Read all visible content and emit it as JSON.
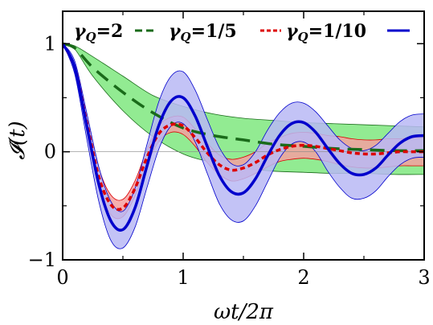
{
  "chart_data": {
    "type": "line",
    "xlabel": "ωt/2π",
    "ylabel": "𝓘(t)",
    "xlim": [
      0,
      3
    ],
    "ylim": [
      -1,
      1.3
    ],
    "x_ticks": [
      0,
      1,
      2,
      3
    ],
    "x_tick_labels": [
      "0",
      "1",
      "2",
      "3"
    ],
    "y_ticks": [
      -1,
      0,
      1
    ],
    "y_tick_labels": [
      "−1",
      "0",
      "1"
    ],
    "legend_placement": "top",
    "grid": false,
    "series": [
      {
        "name": "γQ=2",
        "legend_label": "γ_Q=2",
        "color": "#1a6b1a",
        "band_color": "#7fe87f",
        "dash": "18,10",
        "x": [
          0,
          0.1,
          0.25,
          0.5,
          0.75,
          1.0,
          1.25,
          1.5,
          1.75,
          2.0,
          2.25,
          2.5,
          2.75,
          3.0
        ],
        "y": [
          1.0,
          0.96,
          0.78,
          0.55,
          0.36,
          0.22,
          0.15,
          0.11,
          0.07,
          0.05,
          0.03,
          0.02,
          0.01,
          0.01
        ],
        "band_upper": [
          1.0,
          0.98,
          0.88,
          0.7,
          0.52,
          0.42,
          0.35,
          0.31,
          0.29,
          0.27,
          0.26,
          0.25,
          0.24,
          0.23
        ],
        "band_lower": [
          1.0,
          0.95,
          0.7,
          0.38,
          0.14,
          -0.02,
          -0.1,
          -0.15,
          -0.18,
          -0.19,
          -0.2,
          -0.2,
          -0.21,
          -0.21
        ]
      },
      {
        "name": "γQ=1/5",
        "legend_label": "γ_Q=1/5",
        "color": "#dd0000",
        "band_color": "#f4a0a0",
        "dash": "6,4",
        "x": [
          0,
          0.1,
          0.2,
          0.3,
          0.4,
          0.5,
          0.6,
          0.7,
          0.8,
          0.9,
          1.0,
          1.1,
          1.2,
          1.3,
          1.4,
          1.5,
          1.6,
          1.7,
          1.8,
          1.9,
          2.0,
          2.1,
          2.2,
          2.3,
          2.4,
          2.5,
          2.6,
          2.7,
          2.8,
          2.9,
          3.0
        ],
        "y": [
          1.0,
          0.78,
          0.27,
          -0.23,
          -0.49,
          -0.52,
          -0.34,
          -0.05,
          0.17,
          0.25,
          0.24,
          0.13,
          -0.01,
          -0.12,
          -0.17,
          -0.15,
          -0.1,
          -0.03,
          0.02,
          0.05,
          0.06,
          0.05,
          0.03,
          0.01,
          -0.01,
          -0.02,
          -0.02,
          -0.01,
          0.0,
          0.0,
          0.0
        ],
        "band_upper": [
          1.0,
          0.8,
          0.32,
          -0.15,
          -0.4,
          -0.44,
          -0.27,
          0.02,
          0.24,
          0.32,
          0.32,
          0.21,
          0.08,
          -0.03,
          -0.07,
          -0.05,
          0.0,
          0.08,
          0.13,
          0.17,
          0.18,
          0.17,
          0.15,
          0.14,
          0.12,
          0.11,
          0.11,
          0.12,
          0.12,
          0.13,
          0.13
        ],
        "band_lower": [
          1.0,
          0.76,
          0.22,
          -0.31,
          -0.58,
          -0.6,
          -0.41,
          -0.12,
          0.1,
          0.18,
          0.16,
          0.05,
          -0.1,
          -0.21,
          -0.27,
          -0.25,
          -0.2,
          -0.14,
          -0.09,
          -0.07,
          -0.06,
          -0.07,
          -0.09,
          -0.12,
          -0.14,
          -0.15,
          -0.15,
          -0.14,
          -0.13,
          -0.13,
          -0.13
        ]
      },
      {
        "name": "γQ=1/10",
        "legend_label": "γ_Q=1/10",
        "color": "#0000cc",
        "band_color": "#b8b8f4",
        "dash": "",
        "x": [
          0,
          0.1,
          0.2,
          0.3,
          0.4,
          0.5,
          0.6,
          0.7,
          0.8,
          0.9,
          1.0,
          1.1,
          1.2,
          1.3,
          1.4,
          1.5,
          1.6,
          1.7,
          1.8,
          1.9,
          2.0,
          2.1,
          2.2,
          2.3,
          2.4,
          2.5,
          2.6,
          2.7,
          2.8,
          2.9,
          3.0
        ],
        "y": [
          1.0,
          0.78,
          0.24,
          -0.3,
          -0.64,
          -0.72,
          -0.52,
          -0.13,
          0.25,
          0.47,
          0.5,
          0.33,
          0.05,
          -0.22,
          -0.37,
          -0.38,
          -0.25,
          -0.04,
          0.15,
          0.26,
          0.27,
          0.18,
          0.03,
          -0.11,
          -0.2,
          -0.21,
          -0.15,
          -0.03,
          0.08,
          0.14,
          0.15
        ],
        "band_upper": [
          1.0,
          0.84,
          0.36,
          -0.14,
          -0.46,
          -0.55,
          -0.34,
          0.07,
          0.47,
          0.7,
          0.74,
          0.57,
          0.3,
          0.04,
          -0.11,
          -0.12,
          0.0,
          0.2,
          0.36,
          0.45,
          0.45,
          0.37,
          0.24,
          0.11,
          0.03,
          0.01,
          0.06,
          0.17,
          0.28,
          0.34,
          0.35
        ],
        "band_lower": [
          1.0,
          0.72,
          0.12,
          -0.46,
          -0.82,
          -0.89,
          -0.7,
          -0.33,
          0.03,
          0.24,
          0.26,
          0.09,
          -0.2,
          -0.48,
          -0.63,
          -0.64,
          -0.5,
          -0.28,
          -0.06,
          0.07,
          0.09,
          0.0,
          -0.18,
          -0.33,
          -0.43,
          -0.43,
          -0.36,
          -0.23,
          -0.12,
          -0.06,
          -0.05
        ]
      }
    ]
  }
}
